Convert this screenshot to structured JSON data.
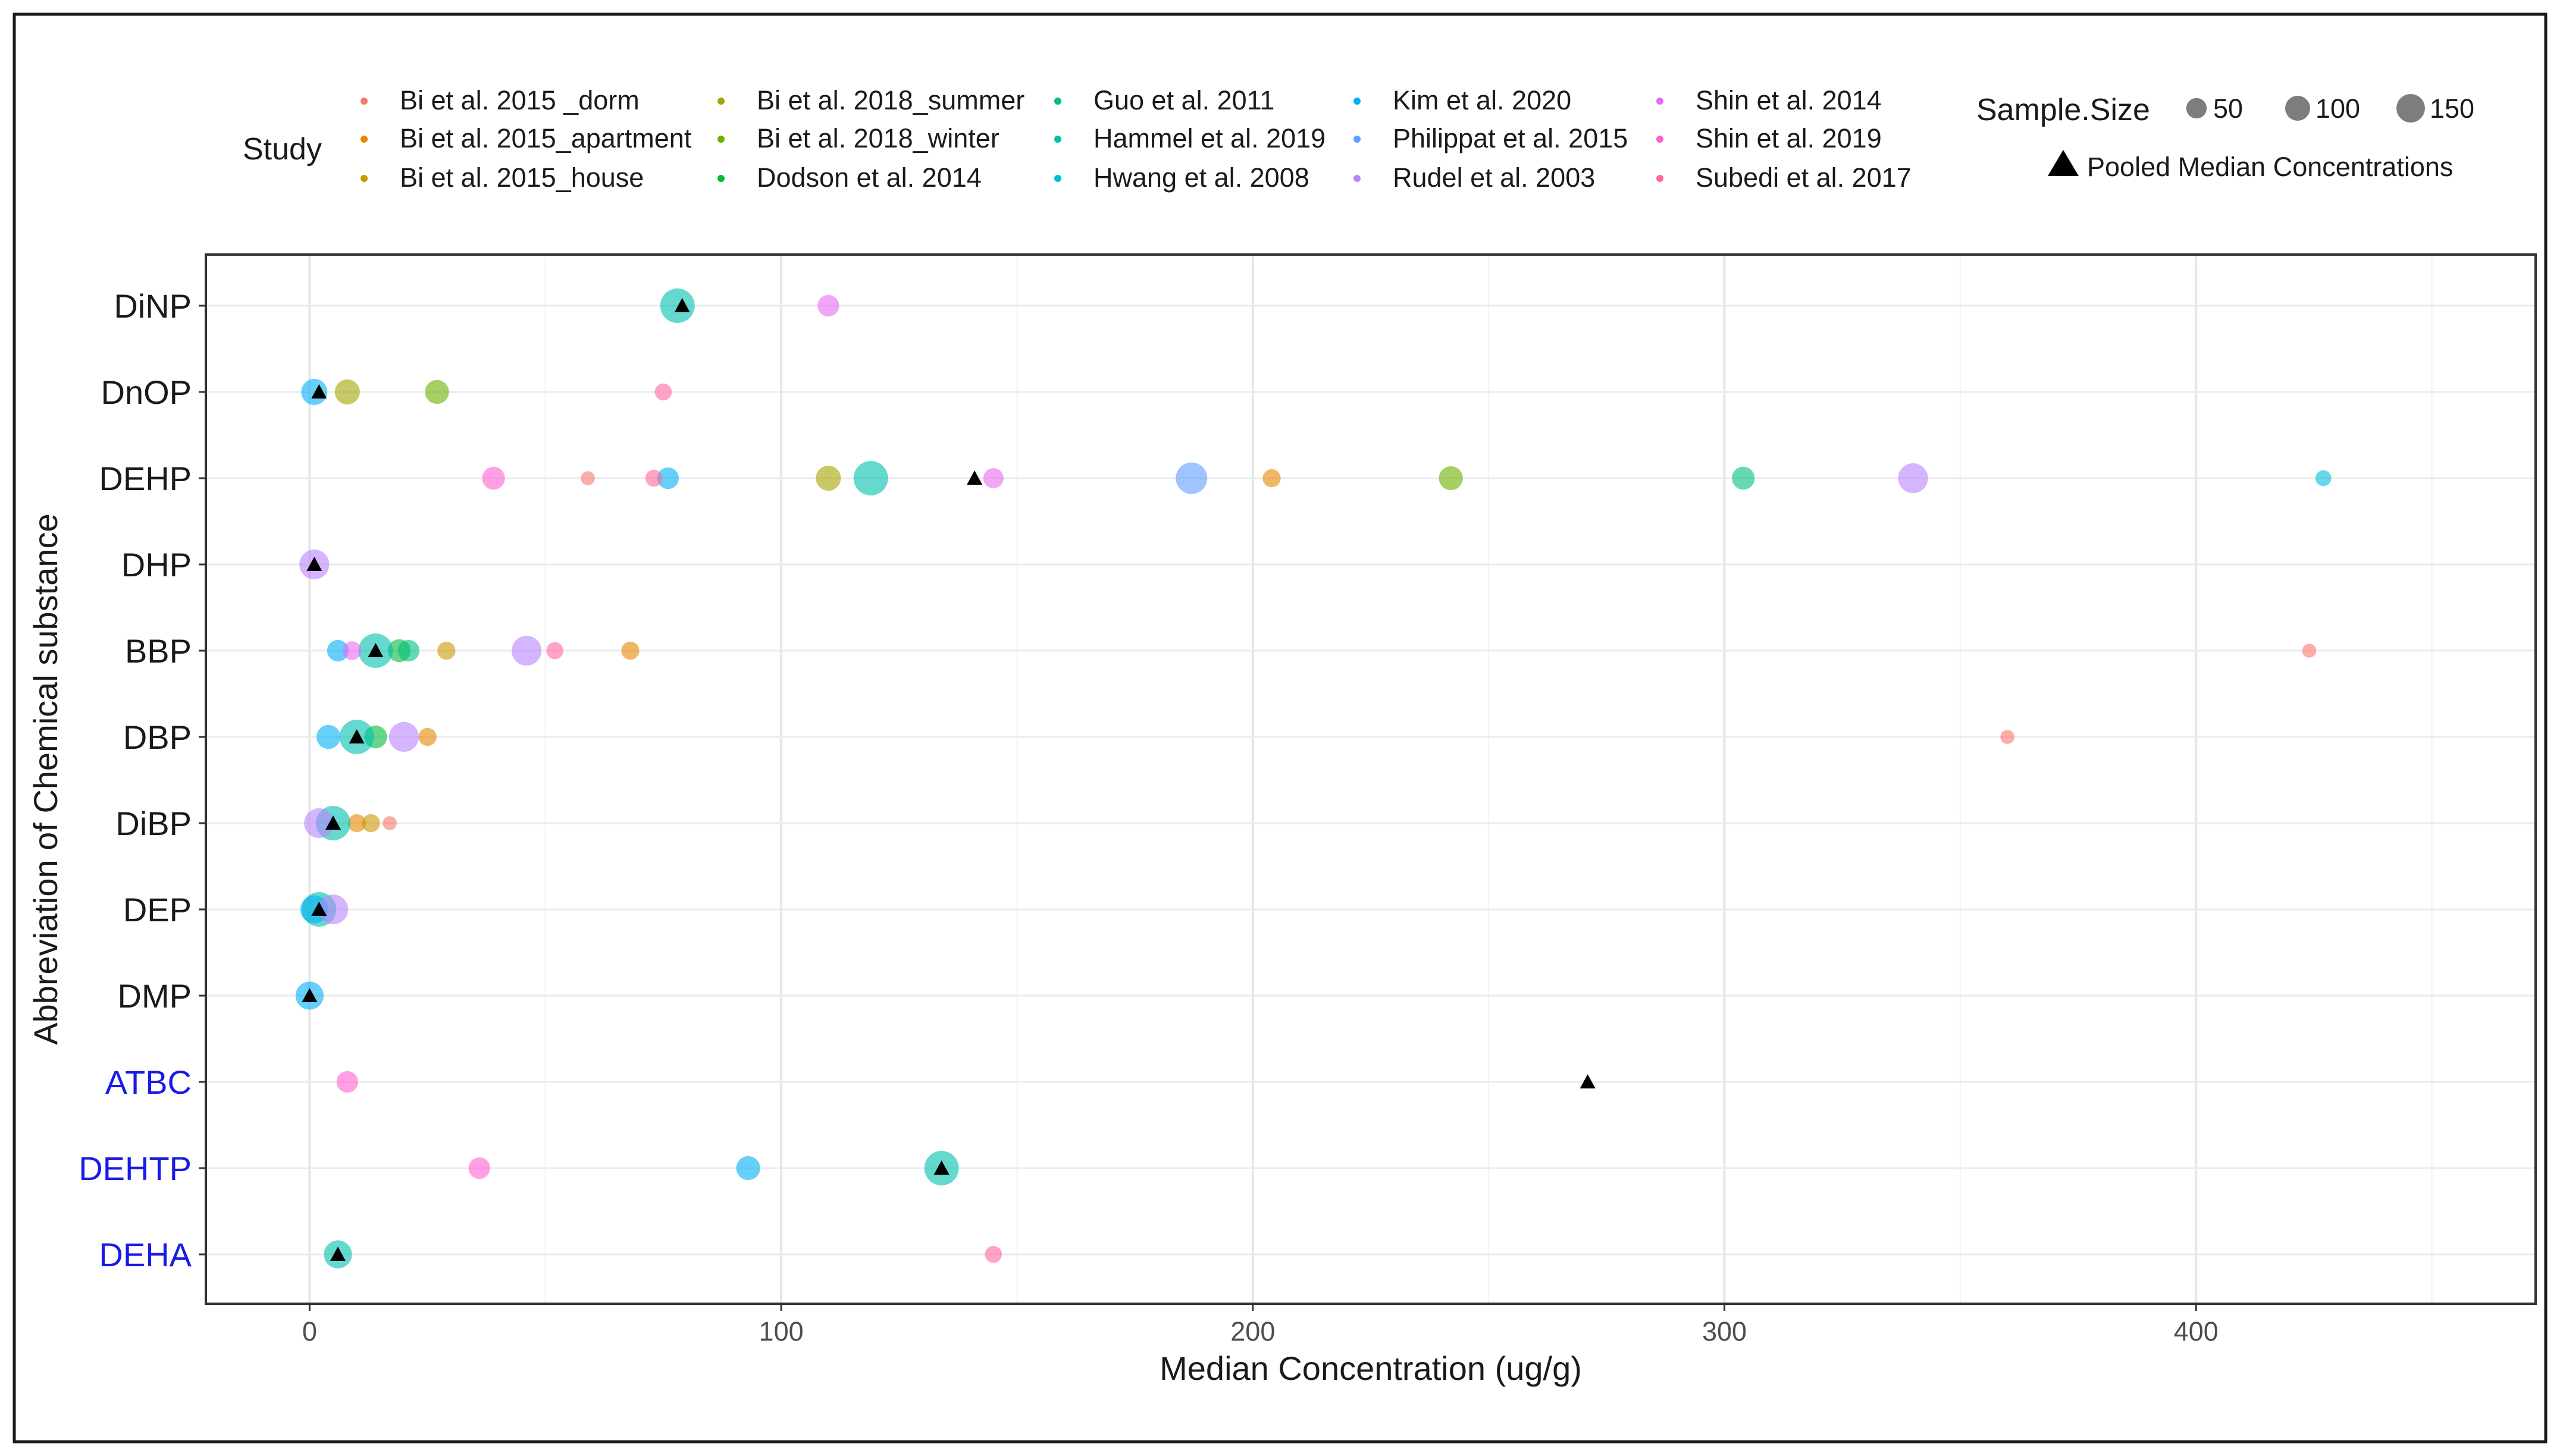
{
  "chart_data": {
    "type": "scatter",
    "xlabel": "Median Concentration (ug/g)",
    "ylabel": "Abbreviation of Chemical substance",
    "xlim": [
      -22,
      472
    ],
    "xticks": [
      "0",
      "100",
      "200",
      "300",
      "400"
    ],
    "grid": true,
    "categories": [
      "DiNP",
      "DnOP",
      "DEHP",
      "DHP",
      "BBP",
      "DBP",
      "DiBP",
      "DEP",
      "DMP",
      "ATBC",
      "DEHTP",
      "DEHA"
    ],
    "category_colors": {
      "DiNP": "#1a1a1a",
      "DnOP": "#1a1a1a",
      "DEHP": "#1a1a1a",
      "DHP": "#1a1a1a",
      "BBP": "#1a1a1a",
      "DBP": "#1a1a1a",
      "DiBP": "#1a1a1a",
      "DEP": "#1a1a1a",
      "DMP": "#1a1a1a",
      "ATBC": "#1a1ae6",
      "DEHTP": "#1a1ae6",
      "DEHA": "#1a1ae6"
    },
    "legend": {
      "study_title": "Study",
      "size_title": "Sample.Size",
      "sizes": [
        50,
        100,
        150
      ],
      "size_labels": [
        "50",
        "100",
        "150"
      ],
      "pooled_label": "Pooled Median Concentrations",
      "placement": "top"
    },
    "series": [
      {
        "name": "Bi et al. 2015 _dorm",
        "color": "#F8766D",
        "points": [
          {
            "chemical": "DEHP",
            "x": 59,
            "n": 8
          },
          {
            "chemical": "BBP",
            "x": 424,
            "n": 8
          },
          {
            "chemical": "DBP",
            "x": 360,
            "n": 8
          },
          {
            "chemical": "DiBP",
            "x": 17,
            "n": 8
          }
        ]
      },
      {
        "name": "Bi et al. 2015_apartment",
        "color": "#E58700",
        "points": [
          {
            "chemical": "DEHP",
            "x": 204,
            "n": 18
          },
          {
            "chemical": "BBP",
            "x": 68,
            "n": 18
          },
          {
            "chemical": "DBP",
            "x": 25,
            "n": 18
          },
          {
            "chemical": "DiBP",
            "x": 10,
            "n": 18
          }
        ]
      },
      {
        "name": "Bi et al. 2015_house",
        "color": "#C99800",
        "points": [
          {
            "chemical": "BBP",
            "x": 29,
            "n": 18
          },
          {
            "chemical": "DiBP",
            "x": 13,
            "n": 18
          }
        ]
      },
      {
        "name": "Bi et al. 2018_summer",
        "color": "#A3A500",
        "points": [
          {
            "chemical": "DnOP",
            "x": 8,
            "n": 45
          },
          {
            "chemical": "DEHP",
            "x": 110,
            "n": 45
          }
        ]
      },
      {
        "name": "Bi et al. 2018_winter",
        "color": "#6BB100",
        "points": [
          {
            "chemical": "DnOP",
            "x": 27,
            "n": 40
          },
          {
            "chemical": "DEHP",
            "x": 242,
            "n": 40
          }
        ]
      },
      {
        "name": "Dodson et al. 2014",
        "color": "#00BA38",
        "points": [
          {
            "chemical": "BBP",
            "x": 19,
            "n": 35
          },
          {
            "chemical": "DBP",
            "x": 14,
            "n": 35
          }
        ]
      },
      {
        "name": "Guo et al. 2011",
        "color": "#00BF7D",
        "points": [
          {
            "chemical": "DEHP",
            "x": 304,
            "n": 35
          },
          {
            "chemical": "BBP",
            "x": 21,
            "n": 30
          }
        ]
      },
      {
        "name": "Hammel et al. 2019",
        "color": "#00C0AF",
        "points": [
          {
            "chemical": "DiNP",
            "x": 78,
            "n": 100
          },
          {
            "chemical": "DEHP",
            "x": 119,
            "n": 100
          },
          {
            "chemical": "BBP",
            "x": 14,
            "n": 100
          },
          {
            "chemical": "DBP",
            "x": 10,
            "n": 100
          },
          {
            "chemical": "DiBP",
            "x": 5,
            "n": 100
          },
          {
            "chemical": "DEP",
            "x": 2,
            "n": 100
          },
          {
            "chemical": "DEHTP",
            "x": 134,
            "n": 100
          },
          {
            "chemical": "DEHA",
            "x": 6,
            "n": 60
          }
        ]
      },
      {
        "name": "Hwang et al. 2008",
        "color": "#00BCD8",
        "points": [
          {
            "chemical": "DEHP",
            "x": 427,
            "n": 12
          }
        ]
      },
      {
        "name": "Kim et al. 2020",
        "color": "#00B0F6",
        "points": [
          {
            "chemical": "DnOP",
            "x": 1,
            "n": 50
          },
          {
            "chemical": "DEHP",
            "x": 76,
            "n": 30
          },
          {
            "chemical": "BBP",
            "x": 6,
            "n": 30
          },
          {
            "chemical": "DBP",
            "x": 4,
            "n": 40
          },
          {
            "chemical": "DEP",
            "x": 1,
            "n": 60
          },
          {
            "chemical": "DMP",
            "x": 0,
            "n": 60
          },
          {
            "chemical": "DEHTP",
            "x": 93,
            "n": 40
          }
        ]
      },
      {
        "name": "Philippat et al. 2015",
        "color": "#619CFF",
        "points": [
          {
            "chemical": "DEHP",
            "x": 187,
            "n": 80
          }
        ]
      },
      {
        "name": "Rudel et al. 2003",
        "color": "#B983FF",
        "points": [
          {
            "chemical": "DEHP",
            "x": 340,
            "n": 70
          },
          {
            "chemical": "DHP",
            "x": 1,
            "n": 70
          },
          {
            "chemical": "BBP",
            "x": 46,
            "n": 70
          },
          {
            "chemical": "DBP",
            "x": 20,
            "n": 70
          },
          {
            "chemical": "DiBP",
            "x": 2,
            "n": 70
          },
          {
            "chemical": "DEP",
            "x": 5,
            "n": 70
          }
        ]
      },
      {
        "name": "Shin et al. 2014",
        "color": "#E76BF3",
        "points": [
          {
            "chemical": "DiNP",
            "x": 110,
            "n": 30
          },
          {
            "chemical": "DEHP",
            "x": 145,
            "n": 25
          },
          {
            "chemical": "BBP",
            "x": 9,
            "n": 20
          }
        ]
      },
      {
        "name": "Shin et al. 2019",
        "color": "#FD61D1",
        "points": [
          {
            "chemical": "DEHP",
            "x": 39,
            "n": 35
          },
          {
            "chemical": "ATBC",
            "x": 8,
            "n": 30
          },
          {
            "chemical": "DEHTP",
            "x": 36,
            "n": 30
          }
        ]
      },
      {
        "name": "Subedi et al. 2017",
        "color": "#FF67A4",
        "points": [
          {
            "chemical": "DnOP",
            "x": 75,
            "n": 15
          },
          {
            "chemical": "DEHP",
            "x": 73,
            "n": 15
          },
          {
            "chemical": "BBP",
            "x": 52,
            "n": 15
          },
          {
            "chemical": "DEHA",
            "x": 145,
            "n": 15
          }
        ]
      }
    ],
    "pooled_medians": [
      {
        "chemical": "DiNP",
        "x": 79
      },
      {
        "chemical": "DnOP",
        "x": 2
      },
      {
        "chemical": "DEHP",
        "x": 141
      },
      {
        "chemical": "DHP",
        "x": 1
      },
      {
        "chemical": "BBP",
        "x": 14
      },
      {
        "chemical": "DBP",
        "x": 10
      },
      {
        "chemical": "DiBP",
        "x": 5
      },
      {
        "chemical": "DEP",
        "x": 2
      },
      {
        "chemical": "DMP",
        "x": 0
      },
      {
        "chemical": "ATBC",
        "x": 271
      },
      {
        "chemical": "DEHTP",
        "x": 134
      },
      {
        "chemical": "DEHA",
        "x": 6
      }
    ]
  }
}
